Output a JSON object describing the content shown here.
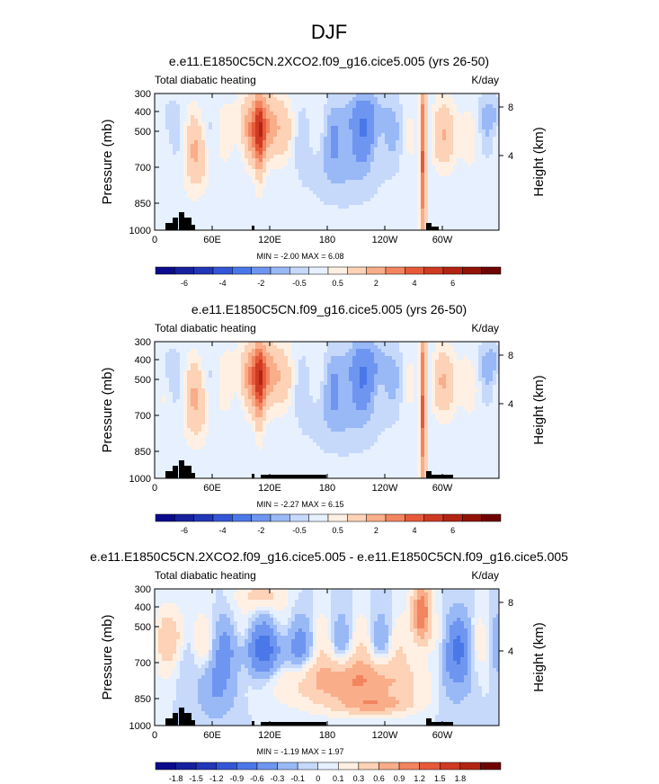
{
  "figure_title": "DJF",
  "chart_data": [
    {
      "type": "heatmap",
      "title": "e.e11.E1850C5CN.2XCO2.f09_g16.cice5.005 (yrs 26-50)",
      "left_subtitle": "Total diabatic heating",
      "right_subtitle": "K/day",
      "xlabel": "",
      "ylabel": "Pressure (mb)",
      "ylabel_right": "Height (km)",
      "x_ticks": [
        "0",
        "60E",
        "120E",
        "180",
        "120W",
        "60W"
      ],
      "y_ticks": [
        "300",
        "400",
        "500",
        "700",
        "850",
        "1000"
      ],
      "y_ticks_right": [
        "8",
        "4"
      ],
      "stats": "MIN =  -2.00  MAX =   6.08",
      "min": -2.0,
      "max": 6.08,
      "colorbar_levels": [
        "-6",
        "-4",
        "-2",
        "-0.5",
        "0.5",
        "2",
        "4",
        "6"
      ],
      "colors": [
        "#0a0a8c",
        "#16209e",
        "#2236b8",
        "#3456d6",
        "#4a78e8",
        "#6e96f0",
        "#99b8f6",
        "#c6d9fb",
        "#e6f0ff",
        "#fff0e3",
        "#fdd2b6",
        "#f9ad88",
        "#f38460",
        "#e65a3a",
        "#cf3a22",
        "#b22412",
        "#921208",
        "#6e0403"
      ]
    },
    {
      "type": "heatmap",
      "title": "e.e11.E1850C5CN.f09_g16.cice5.005 (yrs 26-50)",
      "left_subtitle": "Total diabatic heating",
      "right_subtitle": "K/day",
      "xlabel": "",
      "ylabel": "Pressure (mb)",
      "ylabel_right": "Height (km)",
      "x_ticks": [
        "0",
        "60E",
        "120E",
        "180",
        "120W",
        "60W"
      ],
      "y_ticks": [
        "300",
        "400",
        "500",
        "700",
        "850",
        "1000"
      ],
      "y_ticks_right": [
        "8",
        "4"
      ],
      "stats": "MIN =  -2.27  MAX =   6.15",
      "min": -2.27,
      "max": 6.15,
      "colorbar_levels": [
        "-6",
        "-4",
        "-2",
        "-0.5",
        "0.5",
        "2",
        "4",
        "6"
      ],
      "colors": [
        "#0a0a8c",
        "#16209e",
        "#2236b8",
        "#3456d6",
        "#4a78e8",
        "#6e96f0",
        "#99b8f6",
        "#c6d9fb",
        "#e6f0ff",
        "#fff0e3",
        "#fdd2b6",
        "#f9ad88",
        "#f38460",
        "#e65a3a",
        "#cf3a22",
        "#b22412",
        "#921208",
        "#6e0403"
      ]
    },
    {
      "type": "heatmap",
      "title": "e.e11.E1850C5CN.2XCO2.f09_g16.cice5.005 - e.e11.E1850C5CN.f09_g16.cice5.005",
      "left_subtitle": "Total diabatic heating",
      "right_subtitle": "K/day",
      "xlabel": "",
      "ylabel": "Pressure (mb)",
      "ylabel_right": "Height (km)",
      "x_ticks": [
        "0",
        "60E",
        "120E",
        "180",
        "120W",
        "60W"
      ],
      "y_ticks": [
        "300",
        "400",
        "500",
        "700",
        "850",
        "1000"
      ],
      "y_ticks_right": [
        "8",
        "4"
      ],
      "stats": "MIN =  -1.19  MAX =   1.97",
      "min": -1.19,
      "max": 1.97,
      "colorbar_levels": [
        "-1.8",
        "-1.5",
        "-1.2",
        "-0.9",
        "-0.6",
        "-0.3",
        "-0.1",
        "0",
        "0.1",
        "0.3",
        "0.6",
        "0.9",
        "1.2",
        "1.5",
        "1.8"
      ],
      "colors": [
        "#0a0a8c",
        "#16209e",
        "#2236b8",
        "#3456d6",
        "#4a78e8",
        "#6e96f0",
        "#99b8f6",
        "#c6d9fb",
        "#e6f0ff",
        "#fff0e3",
        "#fdd2b6",
        "#f9ad88",
        "#f38460",
        "#e65a3a",
        "#cf3a22",
        "#b22412",
        "#6e0403"
      ]
    }
  ]
}
